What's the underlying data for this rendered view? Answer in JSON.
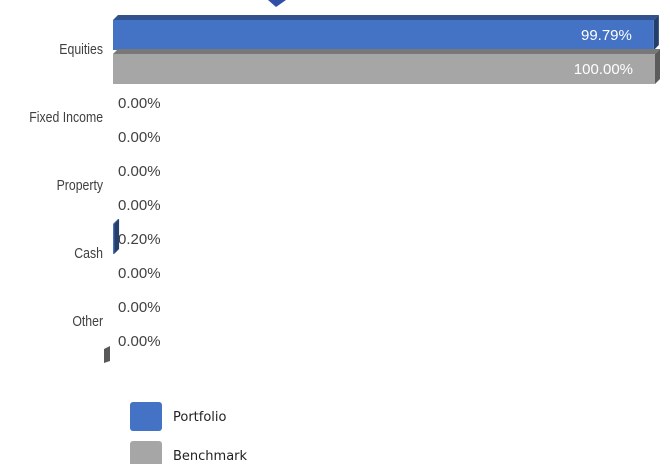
{
  "chart_data": {
    "type": "bar",
    "orientation": "horizontal",
    "title": "",
    "xlabel": "",
    "ylabel": "",
    "categories": [
      "Equities",
      "Fixed Income",
      "Property",
      "Cash",
      "Other"
    ],
    "series": [
      {
        "name": "Portfolio",
        "color": "#4472c4",
        "values": [
          99.79,
          0.0,
          0.0,
          0.2,
          0.0
        ],
        "labels": [
          "99.79%",
          "0.00%",
          "0.00%",
          "0.20%",
          "0.00%"
        ]
      },
      {
        "name": "Benchmark",
        "color": "#a6a6a6",
        "values": [
          100.0,
          0.0,
          0.0,
          0.0,
          0.0
        ],
        "labels": [
          "100.00%",
          "0.00%",
          "0.00%",
          "0.00%",
          "0.00%"
        ]
      }
    ],
    "xlim": [
      0,
      100
    ],
    "grid": false,
    "legend_position": "bottom-left"
  }
}
